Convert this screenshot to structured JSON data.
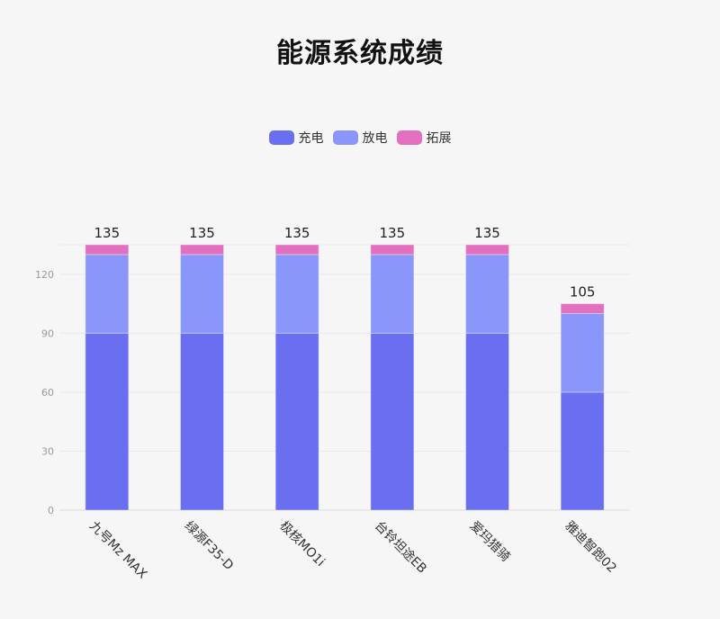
{
  "title": "能源系统成绩",
  "colors": {
    "charge": "#6a6ff2",
    "discharge": "#8b96fb",
    "extend": "#e270bf"
  },
  "legend": [
    {
      "label": "充电",
      "color": "#6a6ff2"
    },
    {
      "label": "放电",
      "color": "#8b96fb"
    },
    {
      "label": "拓展",
      "color": "#e270bf"
    }
  ],
  "chart_data": {
    "type": "bar",
    "stacked": true,
    "title": "能源系统成绩",
    "categories": [
      "九号Mz MAX",
      "绿源F35-D",
      "极核MO1i",
      "台铃坦途EB",
      "爱玛猎骑",
      "雅迪智跑02"
    ],
    "series": [
      {
        "name": "充电",
        "values": [
          90,
          90,
          90,
          90,
          90,
          60
        ]
      },
      {
        "name": "放电",
        "values": [
          40,
          40,
          40,
          40,
          40,
          40
        ]
      },
      {
        "name": "拓展",
        "values": [
          5,
          5,
          5,
          5,
          5,
          5
        ]
      }
    ],
    "totals": [
      135,
      135,
      135,
      135,
      135,
      105
    ],
    "xlabel": "",
    "ylabel": "",
    "ylim": [
      0,
      135
    ],
    "yticks": [
      0,
      30,
      60,
      90,
      120
    ],
    "grid": true,
    "legend_position": "top"
  }
}
